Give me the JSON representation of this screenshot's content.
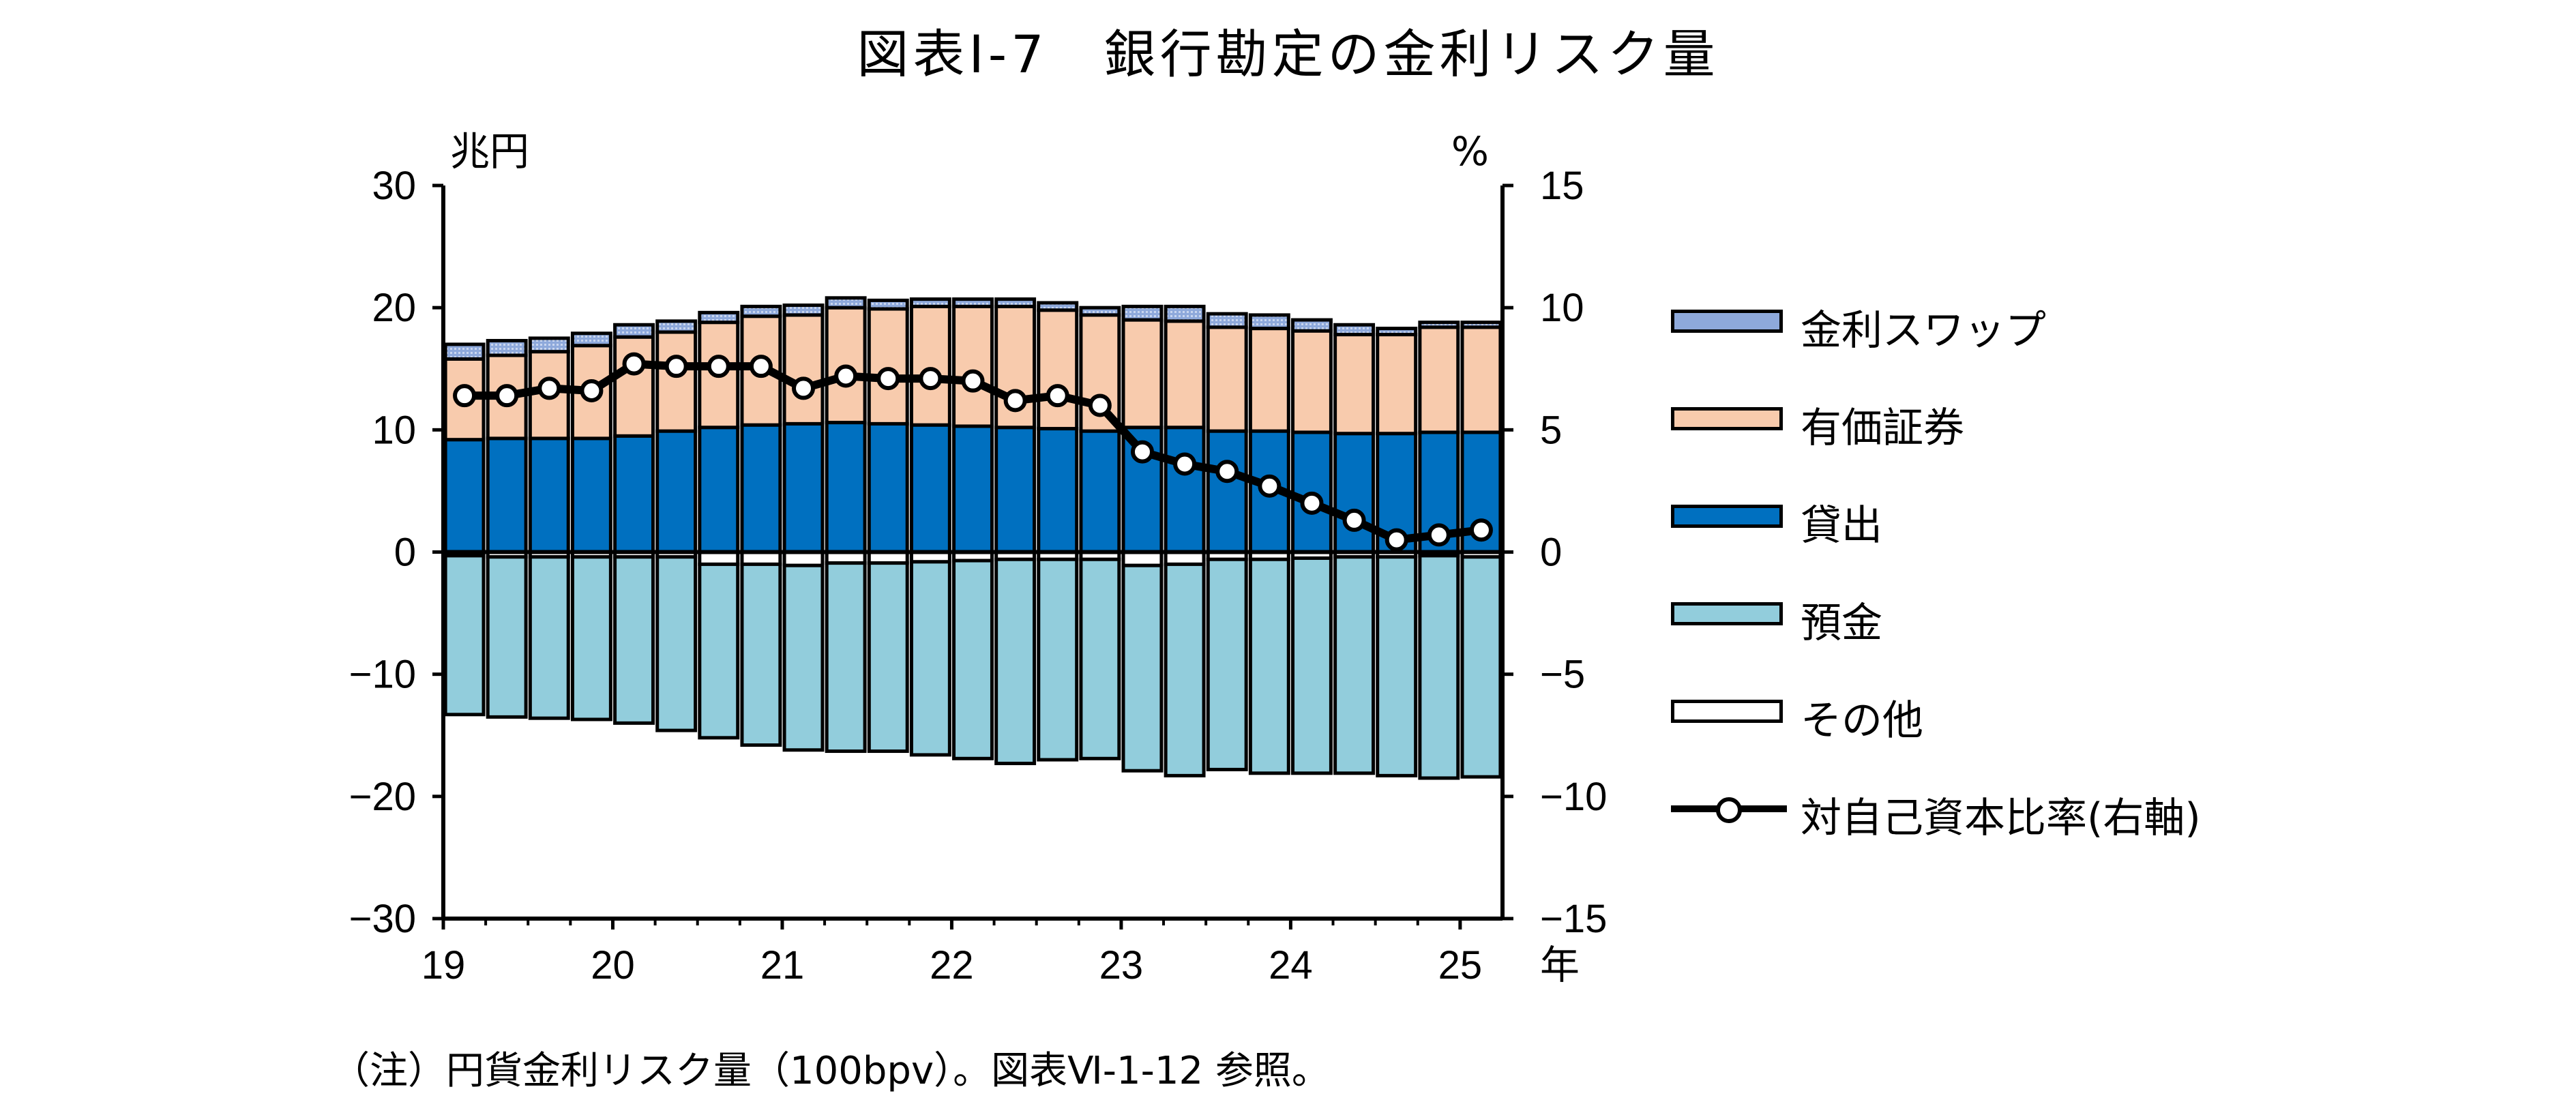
{
  "title": "図表Ⅰ-7　銀行勘定の金利リスク量",
  "note": "（注）円貨金利リスク量（100bpv）。図表Ⅵ-1-12 参照。",
  "chart_data": {
    "type": "bar",
    "stacked": true,
    "left_unit": "兆円",
    "right_unit": "%",
    "x_unit": "年",
    "x_tick_labels": [
      "19",
      "20",
      "21",
      "22",
      "23",
      "24",
      "25"
    ],
    "y_left": {
      "min": -30,
      "max": 30,
      "ticks": [
        30,
        20,
        10,
        0,
        -10,
        -20,
        -30
      ]
    },
    "y_right": {
      "min": -15,
      "max": 15,
      "ticks": [
        15,
        10,
        5,
        0,
        -5,
        -10,
        -15
      ]
    },
    "categories": [
      "19Q1",
      "19Q2",
      "19Q3",
      "19Q4",
      "20Q1",
      "20Q2",
      "20Q3",
      "20Q4",
      "21Q1",
      "21Q2",
      "21Q3",
      "21Q4",
      "22Q1",
      "22Q2",
      "22Q3",
      "22Q4",
      "23Q1",
      "23Q2",
      "23Q3",
      "23Q4",
      "24Q1",
      "24Q2",
      "24Q3",
      "24Q4",
      "25Q1"
    ],
    "series": [
      {
        "name": "金利スワップ",
        "kind": "bar",
        "color": "#8ea9db",
        "values": [
          1.2,
          1.2,
          1.1,
          1.0,
          1.0,
          0.9,
          0.8,
          0.8,
          0.8,
          0.8,
          0.7,
          0.6,
          0.6,
          0.6,
          0.6,
          0.6,
          1.1,
          1.2,
          1.1,
          1.1,
          0.9,
          0.8,
          0.5,
          0.4,
          0.4
        ]
      },
      {
        "name": "有価証券",
        "kind": "bar",
        "color": "#f8cbad",
        "values": [
          6.6,
          6.8,
          7.1,
          7.6,
          8.1,
          8.1,
          8.6,
          8.9,
          8.9,
          9.4,
          9.4,
          9.7,
          9.8,
          9.9,
          9.7,
          9.5,
          8.8,
          8.7,
          8.5,
          8.4,
          8.3,
          8.1,
          8.1,
          8.6,
          8.6
        ]
      },
      {
        "name": "貸出",
        "kind": "bar",
        "color": "#0070c0",
        "values": [
          9.2,
          9.3,
          9.3,
          9.3,
          9.5,
          9.9,
          10.2,
          10.4,
          10.5,
          10.6,
          10.5,
          10.4,
          10.3,
          10.2,
          10.1,
          9.9,
          10.2,
          10.2,
          9.9,
          9.9,
          9.8,
          9.7,
          9.7,
          9.8,
          9.8
        ]
      },
      {
        "name": "預金",
        "kind": "bar",
        "color": "#92cddc",
        "values": [
          -13.0,
          -13.1,
          -13.2,
          -13.3,
          -13.6,
          -14.2,
          -14.2,
          -14.8,
          -15.1,
          -15.4,
          -15.4,
          -15.8,
          -16.2,
          -16.7,
          -16.4,
          -16.3,
          -16.8,
          -17.3,
          -17.2,
          -17.5,
          -17.6,
          -17.7,
          -17.9,
          -18.2,
          -18.0
        ]
      },
      {
        "name": "その他",
        "kind": "bar",
        "color": "#ffffff",
        "values": [
          -0.3,
          -0.4,
          -0.4,
          -0.4,
          -0.4,
          -0.4,
          -1.0,
          -1.0,
          -1.1,
          -0.9,
          -0.9,
          -0.8,
          -0.7,
          -0.6,
          -0.6,
          -0.6,
          -1.1,
          -1.0,
          -0.6,
          -0.6,
          -0.5,
          -0.4,
          -0.4,
          -0.3,
          -0.4
        ]
      },
      {
        "name": "対自己資本比率(右軸)",
        "kind": "line",
        "axis": "right",
        "color": "#000000",
        "values": [
          6.4,
          6.4,
          6.7,
          6.6,
          7.7,
          7.6,
          7.6,
          7.6,
          6.7,
          7.2,
          7.1,
          7.1,
          7.0,
          6.2,
          6.4,
          6.0,
          4.1,
          3.6,
          3.3,
          2.7,
          2.0,
          1.3,
          0.5,
          0.7,
          0.9
        ]
      }
    ]
  }
}
